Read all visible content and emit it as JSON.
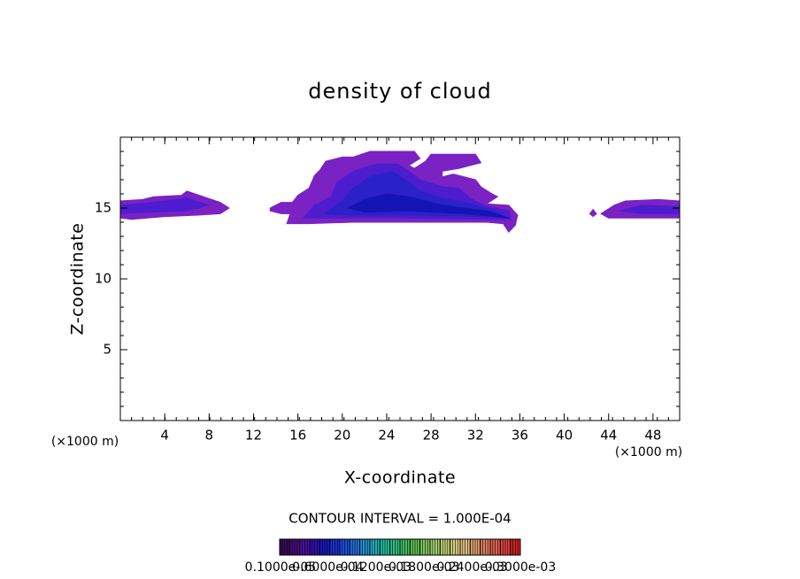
{
  "chart_data": {
    "type": "contour",
    "title": "density of cloud",
    "x_label": "X-coordinate",
    "y_label": "Z-coordinate",
    "x_unit": "(×1000 m)",
    "y_unit": "(×1000 m)",
    "contour_interval": "CONTOUR INTERVAL = 1.000E-04",
    "xlim": [
      0,
      50.4
    ],
    "ylim": [
      0,
      20
    ],
    "xticks": [
      4,
      8,
      12,
      16,
      20,
      24,
      28,
      32,
      36,
      40,
      44,
      48
    ],
    "yticks": [
      5,
      10,
      15
    ],
    "regions": [
      {
        "level": 1e-06,
        "color": "#7a22c4",
        "points": [
          [
            0,
            14.3
          ],
          [
            0,
            15.5
          ],
          [
            2,
            15.6
          ],
          [
            3,
            15.8
          ],
          [
            5.5,
            15.9
          ],
          [
            6,
            16.2
          ],
          [
            7.5,
            15.8
          ],
          [
            9,
            15.4
          ],
          [
            9.8,
            15
          ],
          [
            9,
            14.6
          ],
          [
            7,
            14.5
          ],
          [
            4,
            14.4
          ],
          [
            1,
            14.2
          ]
        ]
      },
      {
        "level": 1e-06,
        "color": "#7a22c4",
        "points": [
          [
            43.3,
            14.6
          ],
          [
            44.5,
            15.2
          ],
          [
            45.5,
            15.5
          ],
          [
            48.5,
            15.6
          ],
          [
            50.4,
            15.5
          ],
          [
            50.4,
            14.3
          ],
          [
            46,
            14.3
          ],
          [
            44,
            14.3
          ]
        ]
      },
      {
        "level": 1e-06,
        "color": "#7a22c4",
        "points": [
          [
            42.3,
            14.6
          ],
          [
            42.6,
            14.9
          ],
          [
            42.9,
            14.6
          ],
          [
            42.6,
            14.4
          ]
        ]
      },
      {
        "level": 1e-06,
        "color": "#7a22c4",
        "points": [
          [
            13.5,
            15
          ],
          [
            14.5,
            15.4
          ],
          [
            15.5,
            15.4
          ],
          [
            16,
            15.9
          ],
          [
            17,
            16.4
          ],
          [
            17.5,
            17.3
          ],
          [
            18,
            17.7
          ],
          [
            18.5,
            18.3
          ],
          [
            20,
            18.6
          ],
          [
            21,
            18.6
          ],
          [
            22.5,
            19
          ],
          [
            26.5,
            19
          ],
          [
            27,
            18.5
          ],
          [
            26,
            18
          ],
          [
            26.5,
            17.8
          ],
          [
            27.5,
            18.3
          ],
          [
            28,
            18.8
          ],
          [
            32,
            18.8
          ],
          [
            32.5,
            18.2
          ],
          [
            30.5,
            17.8
          ],
          [
            29,
            17.6
          ],
          [
            29,
            17.2
          ],
          [
            30,
            17.4
          ],
          [
            32,
            17
          ],
          [
            32.5,
            16.5
          ],
          [
            33.5,
            16
          ],
          [
            34,
            15.8
          ],
          [
            33,
            15.3
          ],
          [
            35,
            15.2
          ],
          [
            35.8,
            14.5
          ],
          [
            35.6,
            13.8
          ],
          [
            35,
            13.3
          ],
          [
            34.5,
            13.9
          ],
          [
            33,
            14
          ],
          [
            25,
            14
          ],
          [
            21,
            14
          ],
          [
            17,
            13.9
          ],
          [
            15,
            13.9
          ],
          [
            15.3,
            14.6
          ],
          [
            14.5,
            14.6
          ],
          [
            13.5,
            14.8
          ]
        ]
      },
      {
        "level": 6e-05,
        "color": "#4d1ccf",
        "points": [
          [
            0,
            14.6
          ],
          [
            0,
            15.2
          ],
          [
            3,
            15.4
          ],
          [
            6,
            15.7
          ],
          [
            8,
            15.2
          ],
          [
            6,
            14.8
          ],
          [
            2,
            14.7
          ]
        ]
      },
      {
        "level": 6e-05,
        "color": "#4d1ccf",
        "points": [
          [
            45,
            14.8
          ],
          [
            47,
            15.2
          ],
          [
            50.4,
            15.1
          ],
          [
            50.4,
            14.6
          ],
          [
            47,
            14.6
          ]
        ]
      },
      {
        "level": 6e-05,
        "color": "#4d1ccf",
        "points": [
          [
            16.5,
            14.3
          ],
          [
            17.5,
            15.2
          ],
          [
            19,
            15.8
          ],
          [
            19.5,
            16.8
          ],
          [
            21,
            17.6
          ],
          [
            23,
            18.1
          ],
          [
            25,
            18.1
          ],
          [
            26,
            17.6
          ],
          [
            27,
            17
          ],
          [
            29,
            16.5
          ],
          [
            30.5,
            16.4
          ],
          [
            31.5,
            15.7
          ],
          [
            33,
            15.1
          ],
          [
            35,
            14.8
          ],
          [
            35.2,
            14.2
          ],
          [
            33,
            14.2
          ],
          [
            25,
            14.3
          ],
          [
            20,
            14.3
          ]
        ]
      },
      {
        "level": 0.00012,
        "color": "#2a22c8",
        "points": [
          [
            18.5,
            14.6
          ],
          [
            20,
            15.5
          ],
          [
            21,
            16.4
          ],
          [
            22.5,
            17.2
          ],
          [
            24.5,
            17.6
          ],
          [
            25.5,
            17.1
          ],
          [
            27,
            16.2
          ],
          [
            29,
            15.7
          ],
          [
            31.5,
            15.3
          ],
          [
            34.5,
            14.6
          ],
          [
            33,
            14.4
          ],
          [
            26,
            14.5
          ],
          [
            21,
            14.5
          ]
        ]
      },
      {
        "level": 0.00018,
        "color": "#1414b4",
        "points": [
          [
            20.5,
            15
          ],
          [
            22,
            15.6
          ],
          [
            24,
            16
          ],
          [
            26,
            15.8
          ],
          [
            29,
            15.2
          ],
          [
            33,
            14.8
          ],
          [
            35,
            14.3
          ],
          [
            31,
            14.6
          ],
          [
            26,
            14.8
          ],
          [
            22,
            14.7
          ]
        ]
      }
    ],
    "colorbar": {
      "lim": [
        0,
        0.0003
      ],
      "colors": [
        "#3a0a5a",
        "#4a0c7a",
        "#4a10a0",
        "#3010b0",
        "#1818c0",
        "#1a30d0",
        "#1a50e0",
        "#2070e0",
        "#2090d0",
        "#20b0c0",
        "#20c0a0",
        "#30c080",
        "#40c060",
        "#60c050",
        "#80c860",
        "#a0d070",
        "#c0d070",
        "#d8d080",
        "#e0c080",
        "#e0a070",
        "#e08060",
        "#e06050",
        "#e04040",
        "#d02020"
      ],
      "ticks": [
        {
          "value": 1e-06,
          "label": "0.1000e-05"
        },
        {
          "value": 6e-05,
          "label": "0.6000e-04"
        },
        {
          "value": 0.00012,
          "label": "0.1200e-03"
        },
        {
          "value": 0.00018,
          "label": "0.1800e-03"
        },
        {
          "value": 0.00024,
          "label": "0.2400e-03"
        },
        {
          "value": 0.0003,
          "label": "0.3000e-03"
        }
      ]
    }
  }
}
